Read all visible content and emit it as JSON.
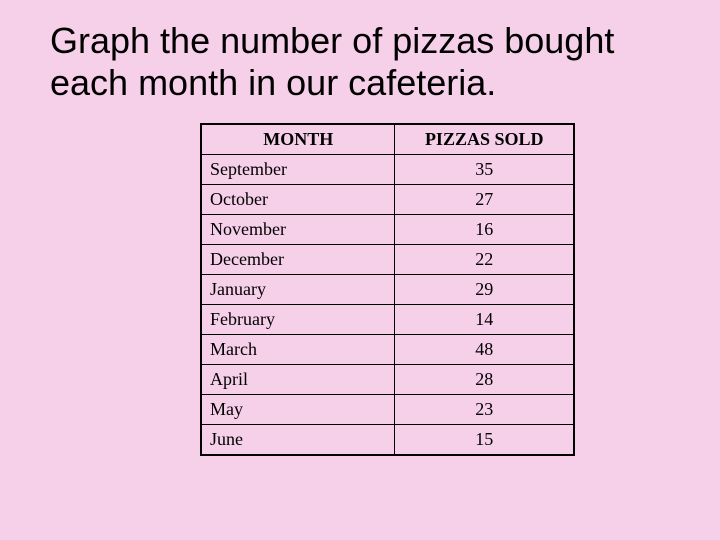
{
  "title": "Graph the number of pizzas bought each month in our cafeteria.",
  "table": {
    "type": "table",
    "columns": [
      "MONTH",
      "PIZZAS SOLD"
    ],
    "column_align": [
      "left",
      "center"
    ],
    "header_align": [
      "center",
      "center"
    ],
    "header_fontweight": "bold",
    "cell_fontsize": 18,
    "border_color": "#000000",
    "background_color": "#f6cfe9",
    "rows": [
      {
        "month": "September",
        "value": 35
      },
      {
        "month": "October",
        "value": 27
      },
      {
        "month": "November",
        "value": 16
      },
      {
        "month": "December",
        "value": 22
      },
      {
        "month": "January",
        "value": 29
      },
      {
        "month": "February",
        "value": 14
      },
      {
        "month": "March",
        "value": 48
      },
      {
        "month": "April",
        "value": 28
      },
      {
        "month": "May",
        "value": 23
      },
      {
        "month": "June",
        "value": 15
      }
    ]
  },
  "page": {
    "background_color": "#f6cfe9",
    "title_font": "Arial",
    "title_fontsize": 36,
    "table_font": "Times New Roman"
  }
}
